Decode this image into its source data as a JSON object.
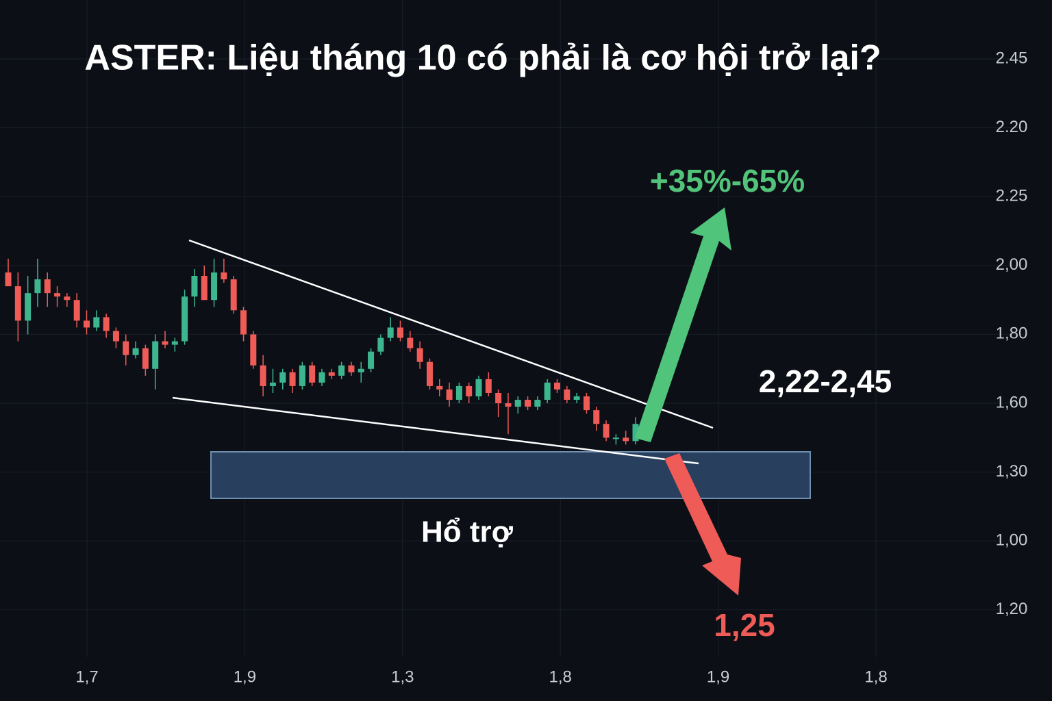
{
  "chart_data": {
    "type": "candlestick",
    "title": "ASTER: Liệu tháng 10 có phải là cơ hội trở lại?",
    "annotations": {
      "up_target": "+35%-65%",
      "range": "2,22-2,45",
      "support": "Hổ trợ",
      "down_target": "1,25"
    },
    "y_labels": [
      "2.45",
      "2.20",
      "2.25",
      "2,00",
      "1,80",
      "1,60",
      "1,30",
      "1,00",
      "1,20"
    ],
    "x_labels": [
      "1,7",
      "1,9",
      "1,3",
      "1,8",
      "1,9",
      "1,8"
    ],
    "ylim": [
      0.9,
      2.7
    ],
    "up_color": "#3db68f",
    "down_color": "#ef5b57",
    "open": [
      1.98,
      1.94,
      1.84,
      1.92,
      1.96,
      1.92,
      1.91,
      1.9,
      1.84,
      1.82,
      1.85,
      1.81,
      1.78,
      1.74,
      1.76,
      1.7,
      1.78,
      1.77,
      1.78,
      1.91,
      1.97,
      1.9,
      1.98,
      1.96,
      1.87,
      1.8,
      1.71,
      1.65,
      1.66,
      1.69,
      1.65,
      1.71,
      1.66,
      1.69,
      1.68,
      1.71,
      1.69,
      1.7,
      1.75,
      1.79,
      1.82,
      1.79,
      1.76,
      1.72,
      1.65,
      1.64,
      1.61,
      1.65,
      1.62,
      1.67,
      1.63,
      1.6,
      1.59,
      1.61,
      1.59,
      1.61,
      1.66,
      1.64,
      1.61,
      1.62,
      1.58,
      1.54,
      1.5,
      1.5,
      1.49
    ],
    "high": [
      2.02,
      1.98,
      1.97,
      2.02,
      1.98,
      1.94,
      1.92,
      1.92,
      1.87,
      1.87,
      1.86,
      1.82,
      1.8,
      1.78,
      1.77,
      1.8,
      1.81,
      1.79,
      1.93,
      1.99,
      2.0,
      2.02,
      2.02,
      1.97,
      1.88,
      1.81,
      1.74,
      1.7,
      1.7,
      1.7,
      1.72,
      1.72,
      1.7,
      1.7,
      1.72,
      1.72,
      1.72,
      1.76,
      1.8,
      1.85,
      1.84,
      1.81,
      1.78,
      1.73,
      1.67,
      1.66,
      1.66,
      1.66,
      1.68,
      1.69,
      1.64,
      1.63,
      1.62,
      1.62,
      1.62,
      1.67,
      1.67,
      1.65,
      1.63,
      1.63,
      1.59,
      1.55,
      1.51,
      1.52,
      1.56
    ],
    "low": [
      1.94,
      1.78,
      1.8,
      1.88,
      1.88,
      1.88,
      1.88,
      1.82,
      1.8,
      1.81,
      1.79,
      1.76,
      1.71,
      1.73,
      1.68,
      1.64,
      1.76,
      1.75,
      1.77,
      1.88,
      1.9,
      1.88,
      1.95,
      1.86,
      1.78,
      1.7,
      1.62,
      1.63,
      1.64,
      1.63,
      1.64,
      1.65,
      1.65,
      1.67,
      1.67,
      1.68,
      1.66,
      1.69,
      1.74,
      1.78,
      1.78,
      1.75,
      1.7,
      1.64,
      1.62,
      1.59,
      1.6,
      1.6,
      1.61,
      1.62,
      1.56,
      1.51,
      1.57,
      1.58,
      1.58,
      1.6,
      1.63,
      1.6,
      1.6,
      1.57,
      1.52,
      1.49,
      1.48,
      1.48,
      1.48
    ],
    "close": [
      1.94,
      1.84,
      1.92,
      1.96,
      1.92,
      1.91,
      1.9,
      1.84,
      1.82,
      1.85,
      1.81,
      1.78,
      1.74,
      1.76,
      1.7,
      1.78,
      1.77,
      1.78,
      1.91,
      1.97,
      1.9,
      1.98,
      1.96,
      1.87,
      1.8,
      1.71,
      1.65,
      1.66,
      1.69,
      1.65,
      1.71,
      1.66,
      1.69,
      1.68,
      1.71,
      1.69,
      1.7,
      1.75,
      1.79,
      1.82,
      1.79,
      1.76,
      1.72,
      1.65,
      1.64,
      1.61,
      1.65,
      1.62,
      1.67,
      1.63,
      1.6,
      1.59,
      1.61,
      1.59,
      1.61,
      1.66,
      1.64,
      1.61,
      1.62,
      1.58,
      1.54,
      1.5,
      1.5,
      1.49,
      1.54
    ]
  }
}
